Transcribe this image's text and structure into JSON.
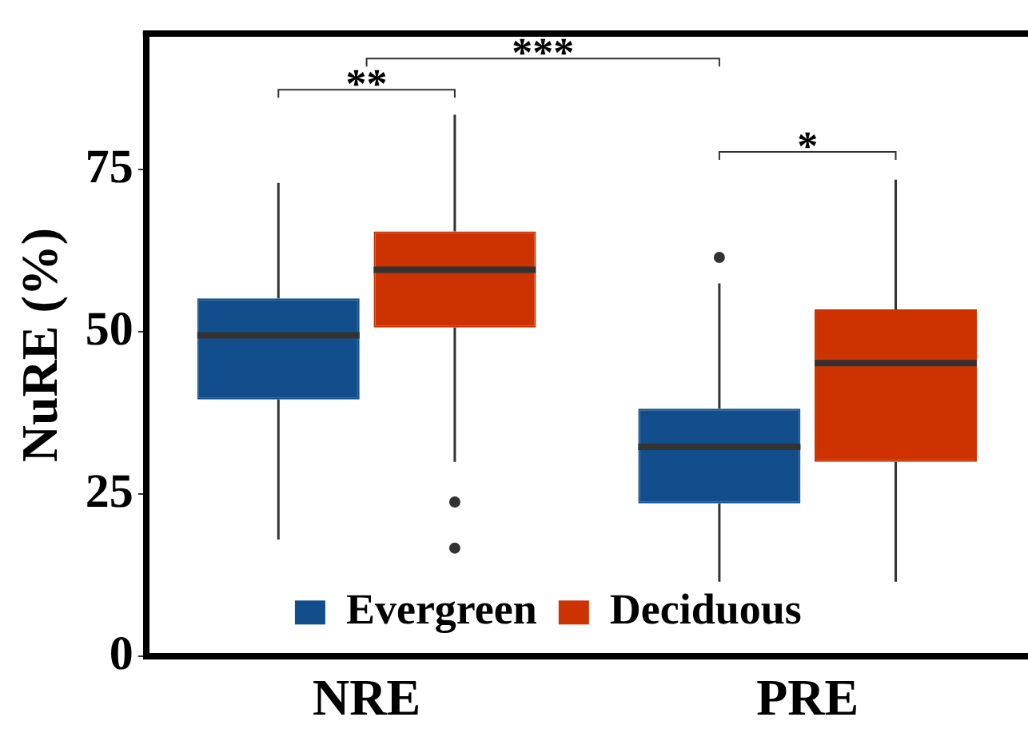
{
  "chart_data": {
    "type": "box",
    "ylabel": "NuRE (%)",
    "categories": [
      "NRE",
      "PRE"
    ],
    "series": [
      {
        "name": "Evergreen",
        "color": "#124e8c",
        "boxes": [
          {
            "low": 18,
            "q1": 39.6,
            "median": 49.5,
            "q3": 55.2,
            "high": 73
          },
          {
            "low": 11.5,
            "q1": 23.6,
            "median": 32.3,
            "q3": 38.2,
            "high": 57.5,
            "outliers": [
              61.5
            ]
          }
        ]
      },
      {
        "name": "Deciduous",
        "color": "#cc3300",
        "boxes": [
          {
            "low": 30,
            "q1": 50.7,
            "median": 59.6,
            "q3": 65.5,
            "high": 83.5,
            "outliers": [
              23.8,
              16.7
            ]
          },
          {
            "low": 11.5,
            "q1": 30,
            "median": 45.2,
            "q3": 53.5,
            "high": 73.5
          }
        ]
      }
    ],
    "ylim": [
      0,
      96
    ],
    "yticks": [
      0,
      25,
      50,
      75
    ],
    "grid": false,
    "legend": "bottom right",
    "annotations": [
      "**",
      "***",
      "*"
    ]
  }
}
